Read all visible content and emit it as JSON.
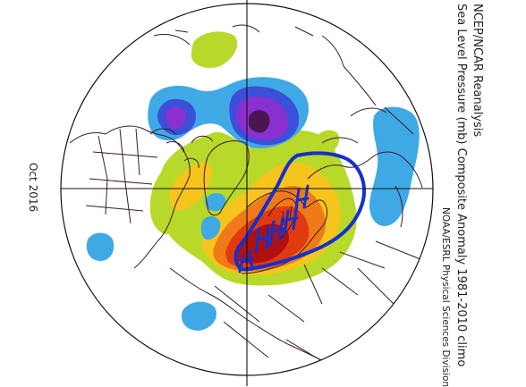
{
  "map": {
    "title_line1": "NCEP/NCAR Reanalysis",
    "title_line2": "Sea Level Pressure (mb) Composite Anomaly 1981-2010 climo",
    "source": "NOAA/ESRL Physical Sciences Division",
    "date": "Oct 2016",
    "projection": "north polar stereographic",
    "field": "sea level pressure anomaly",
    "colors": {
      "strong_positive": "#b01010",
      "positive_high": "#e03a10",
      "positive_mid": "#f07a18",
      "positive_low": "#f6c41c",
      "weak_positive": "#b8d92a",
      "weak_negative": "#3fa9e6",
      "negative_mid": "#3b4fd8",
      "negative_strong": "#8a2fd0",
      "negative_max": "#4a1650",
      "annotation": "#1530cc",
      "coastline": "#3a1a2a"
    },
    "annotation": "hand-drawn blue outline with \"H\" marks around the positive anomaly"
  }
}
